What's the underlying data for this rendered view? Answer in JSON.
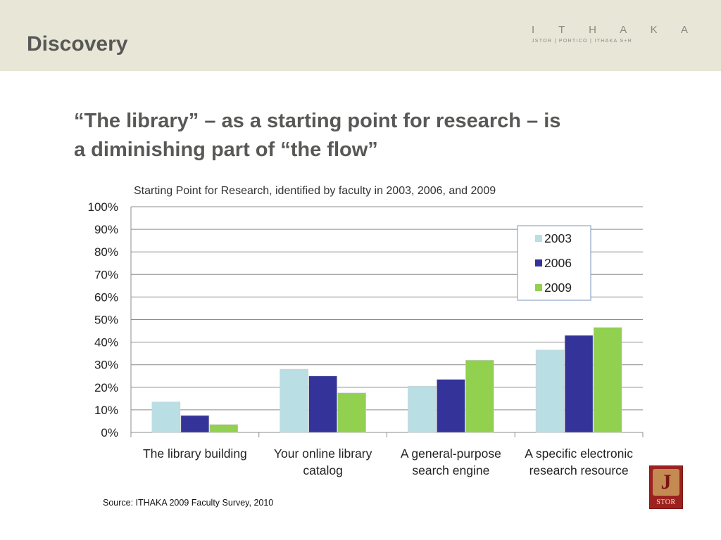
{
  "slide": {
    "section_title": "Discovery",
    "headline_line1": "“The library” – as a starting point for research – is",
    "headline_line2": "a diminishing part of “the flow”",
    "source": "Source: ITHAKA 2009 Faculty Survey, 2010"
  },
  "logos": {
    "ithaka_word": "I T H A K A",
    "ithaka_sub": "JSTOR | PORTICO | ITHAKA S+R",
    "jstor_letter": "J",
    "jstor_text": "STOR"
  },
  "colors": {
    "header_bg": "#e8e6d6",
    "series_2003": "#b9dee3",
    "series_2006": "#333399",
    "series_2009": "#92d050"
  },
  "chart_data": {
    "type": "bar",
    "title": "Starting Point for Research, identified by faculty in 2003, 2006, and 2009",
    "categories": [
      [
        "The library building"
      ],
      [
        "Your online library",
        "catalog"
      ],
      [
        "A general-purpose",
        "search engine"
      ],
      [
        "A specific electronic",
        "research resource"
      ]
    ],
    "series": [
      {
        "name": "2003",
        "values": [
          13.5,
          28,
          20.5,
          36.5
        ],
        "color": "#b9dee3"
      },
      {
        "name": "2006",
        "values": [
          7.5,
          25,
          23.5,
          43
        ],
        "color": "#333399"
      },
      {
        "name": "2009",
        "values": [
          3.5,
          17.5,
          32,
          46.5
        ],
        "color": "#92d050"
      }
    ],
    "yticks": [
      "0%",
      "10%",
      "20%",
      "30%",
      "40%",
      "50%",
      "60%",
      "70%",
      "80%",
      "90%",
      "100%"
    ],
    "ylim": [
      0,
      100
    ],
    "grid": true,
    "legend_position": "top-right",
    "xlabel": "",
    "ylabel": ""
  }
}
